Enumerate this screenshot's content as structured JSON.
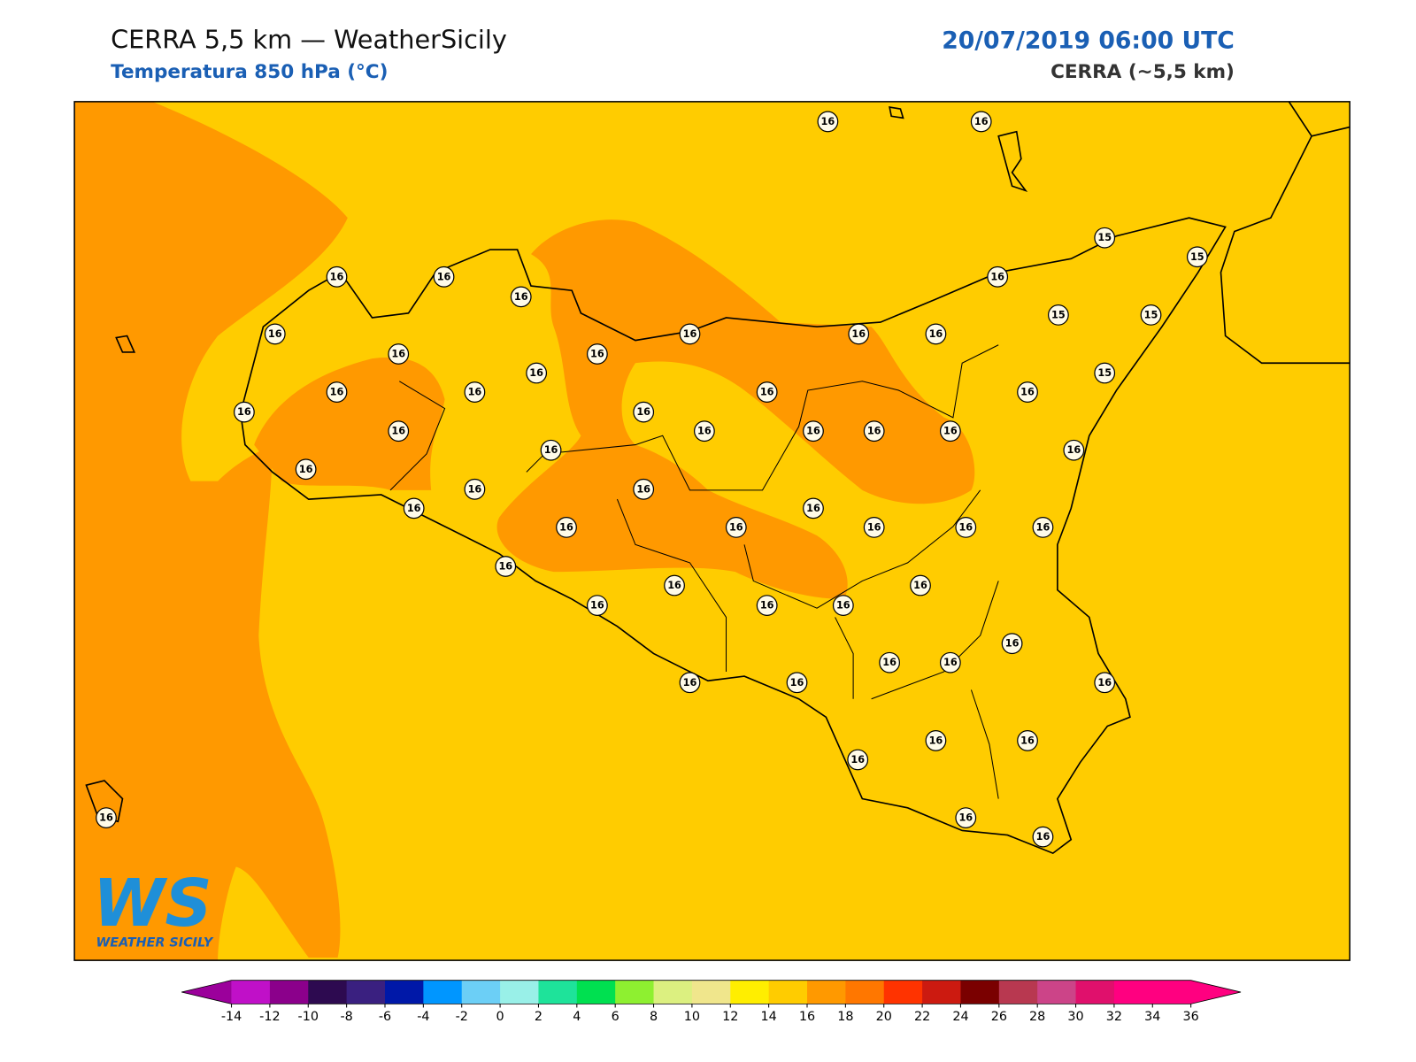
{
  "header": {
    "title": "CERRA 5,5 km — WeatherSicily",
    "subtitle": "Temperatura 850 hPa (°C)",
    "date": "20/07/2019 06:00 UTC",
    "model": "CERRA (~5,5 km)"
  },
  "logo": {
    "mark": "WS",
    "text": "WEATHER SICILY"
  },
  "stations": [
    16,
    16,
    16,
    16,
    16,
    16,
    16,
    16,
    16,
    16,
    15,
    15,
    15,
    15,
    16,
    16,
    16,
    16,
    16,
    16,
    16,
    15,
    16,
    16,
    16,
    16,
    16,
    16,
    16,
    16,
    16,
    16,
    16,
    16,
    16,
    16,
    16,
    16,
    16,
    16,
    16,
    16,
    16,
    16,
    16,
    16,
    16,
    16,
    16,
    16,
    16,
    16,
    16,
    16,
    16,
    16,
    16,
    16,
    16
  ],
  "colorbar": {
    "ticks": [
      -14,
      -12,
      -10,
      -8,
      -6,
      -4,
      -2,
      0,
      2,
      4,
      6,
      8,
      10,
      12,
      14,
      16,
      18,
      20,
      22,
      24,
      26,
      28,
      30,
      32,
      34,
      36
    ],
    "colors": [
      "#c010c8",
      "#8b008b",
      "#2d0a50",
      "#3a2080",
      "#0018a8",
      "#0096ff",
      "#6ccff6",
      "#99f0e8",
      "#1ee39a",
      "#00e050",
      "#8ef030",
      "#dcf080",
      "#f0e68c",
      "#ffee00",
      "#ffcc00",
      "#ff9900",
      "#ff7700",
      "#ff3300",
      "#cc1a10",
      "#7a0000",
      "#b83850",
      "#cc4488",
      "#e0106c",
      "#ff0080",
      "#ff0080"
    ],
    "under": "#9b009b",
    "over": "#ff0080"
  }
}
